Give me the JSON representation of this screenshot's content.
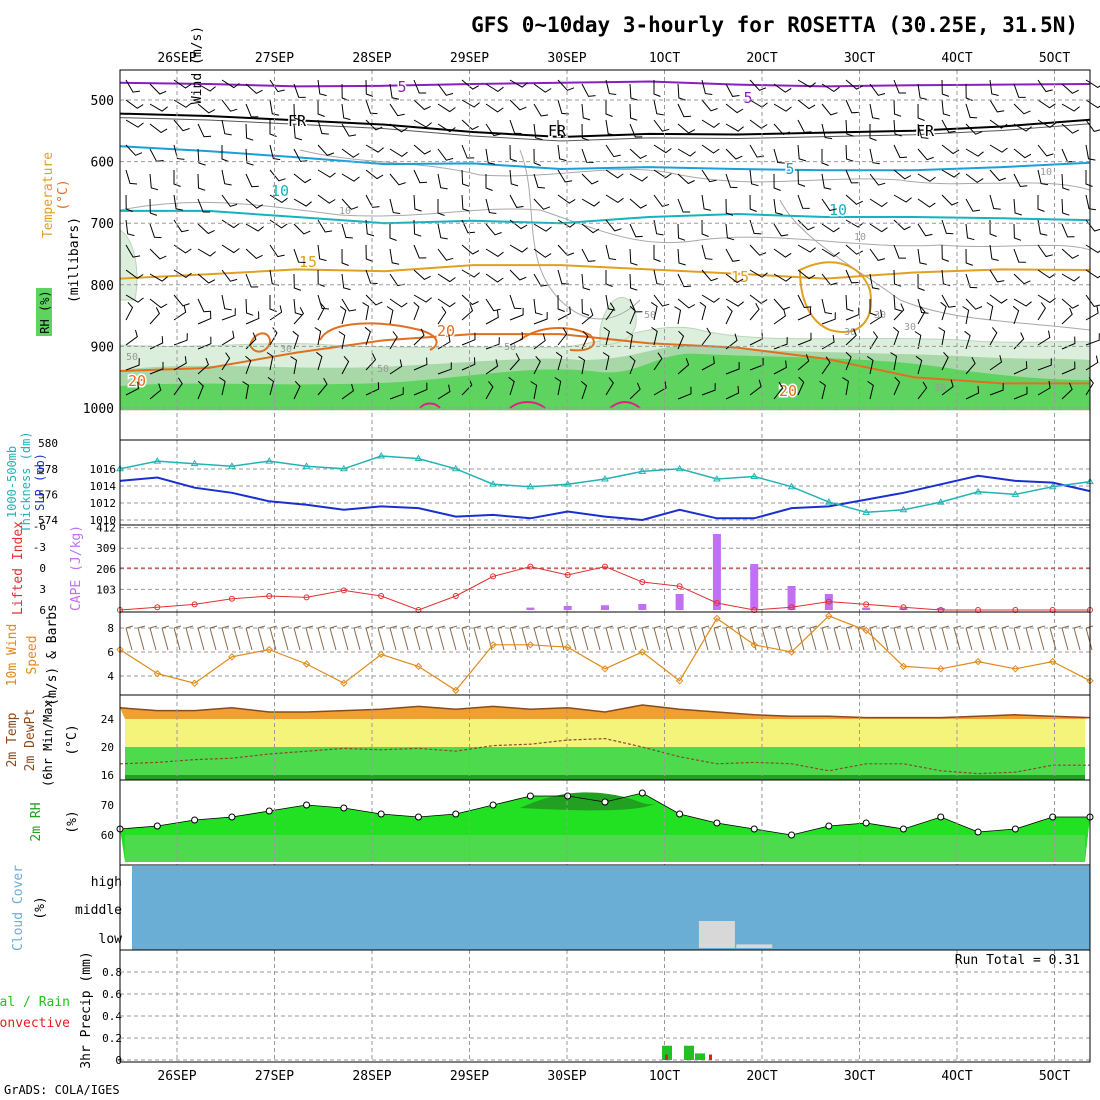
{
  "title": "GFS 0~10day 3-hourly for ROSETTA (30.25E, 31.5N)",
  "credit": "GrADS: COLA/IGES",
  "colors": {
    "purple": "#8a1fbf",
    "black": "#000000",
    "blue": "#1a9fd8",
    "cyan": "#14b3bf",
    "orange": "#e0a020",
    "darkorange": "#e07020",
    "rhgreen": "#5fd35f",
    "lightgreen": "#dcefdc",
    "slp": "#1a2fd0",
    "thick": "#22b3b3",
    "lifted": "#e03030",
    "cape": "#c070f0",
    "wind": "#e08a1a",
    "cloud": "#6aaed6",
    "rain": "#22c022",
    "conv": "#e02020"
  },
  "chart_data": [
    {
      "type": "contour",
      "panel": "upper-air",
      "title": "Temperature (°C) Wind (m/s) RH (%)",
      "ylabel": "(millibars)",
      "y_ticks": [
        500,
        600,
        700,
        800,
        900,
        1000
      ],
      "x_labels": [
        "26SEP",
        "27SEP",
        "28SEP",
        "29SEP",
        "30SEP",
        "1OCT",
        "2OCT",
        "3OCT",
        "4OCT",
        "5OCT"
      ],
      "contour_labels": [
        "5",
        "5",
        "FR",
        "FR",
        "FR",
        "5",
        "10",
        "10",
        "15",
        "15",
        "20",
        "20",
        "20"
      ],
      "rh_labels": [
        "50",
        "30",
        "50",
        "30",
        "30",
        "10",
        "10",
        "10",
        "30",
        "50",
        "50",
        "30"
      ],
      "isotherms": [
        {
          "name": "minus5",
          "label": "-5",
          "pressure": [
            472,
            474,
            478,
            477,
            474,
            472,
            470,
            475,
            478,
            476,
            475,
            474
          ]
        },
        {
          "name": "freezing",
          "label": "FR",
          "pressure": [
            522,
            526,
            533,
            540,
            552,
            560,
            555,
            556,
            553,
            550,
            543,
            532
          ]
        },
        {
          "name": "plus5",
          "label": "5",
          "pressure": [
            575,
            583,
            593,
            604,
            603,
            612,
            609,
            612,
            614,
            614,
            609,
            602
          ]
        },
        {
          "name": "plus10",
          "label": "10",
          "pressure": [
            680,
            680,
            690,
            700,
            696,
            700,
            690,
            685,
            690,
            690,
            692,
            695
          ]
        },
        {
          "name": "plus15",
          "label": "15",
          "pressure": [
            790,
            783,
            775,
            778,
            768,
            768,
            775,
            782,
            790,
            780,
            775,
            776
          ]
        },
        {
          "name": "plus20",
          "label": "20",
          "pressure": [
            940,
            935,
            910,
            890,
            880,
            880,
            895,
            902,
            920,
            950,
            960,
            960
          ]
        }
      ]
    },
    {
      "type": "line",
      "panel": "pressure",
      "ylabel": "1000-500mb Thickness (dm) SLP (mb)",
      "slp_ticks": [
        1010,
        1012,
        1014,
        1016
      ],
      "thickness_ticks": [
        574,
        576,
        578,
        580
      ],
      "series": [
        {
          "name": "SLP",
          "values": [
            1014.6,
            1015.0,
            1013.8,
            1013.2,
            1012.2,
            1011.8,
            1011.2,
            1011.6,
            1011.4,
            1010.4,
            1010.6,
            1010.2,
            1011.0,
            1010.4,
            1010.0,
            1011.2,
            1010.2,
            1010.2,
            1011.4,
            1011.6,
            1012.4,
            1013.2,
            1014.2,
            1015.2,
            1014.6,
            1014.4,
            1013.4
          ]
        },
        {
          "name": "Thickness",
          "values": [
            578.0,
            578.6,
            578.4,
            578.2,
            578.6,
            578.2,
            578.0,
            579.0,
            578.8,
            578.0,
            576.8,
            576.6,
            576.8,
            577.2,
            577.8,
            578.0,
            577.2,
            577.4,
            576.6,
            575.4,
            574.6,
            574.8,
            575.4,
            576.2,
            576.0,
            576.6,
            577.0
          ]
        }
      ]
    },
    {
      "type": "bar",
      "panel": "stability",
      "ylabel": "Lifted Index CAPE (J/kg)",
      "li_ticks": [
        -6,
        -3,
        0,
        3,
        6
      ],
      "cape_ticks": [
        103,
        206,
        309,
        412
      ],
      "lifted_index": [
        6,
        5.6,
        5.2,
        4.4,
        4.0,
        4.2,
        3.2,
        4.0,
        6,
        4.0,
        1.2,
        -0.2,
        1.0,
        -0.2,
        2.0,
        2.6,
        5.0,
        6,
        5.6,
        4.8,
        5.2,
        5.6,
        6,
        6,
        6,
        6,
        6
      ],
      "cape_bars": [
        0,
        0,
        0,
        0,
        0,
        0,
        0,
        0,
        0,
        0,
        0,
        12,
        20,
        24,
        30,
        80,
        380,
        230,
        120,
        80,
        12,
        10,
        10,
        0,
        0,
        0,
        0
      ]
    },
    {
      "type": "line",
      "panel": "wind",
      "ylabel": "10m Wind Speed (m/s) & Barbs",
      "y_ticks": [
        4,
        6,
        8
      ],
      "series": [
        {
          "name": "Wind Speed",
          "values": [
            6.2,
            4.2,
            3.4,
            5.6,
            6.2,
            5.0,
            3.4,
            5.8,
            4.8,
            2.8,
            6.6,
            6.6,
            6.4,
            4.6,
            6.0,
            3.6,
            8.8,
            6.6,
            6.0,
            9.0,
            7.8,
            4.8,
            4.6,
            5.2,
            4.6,
            5.2,
            3.6
          ]
        }
      ]
    },
    {
      "type": "area",
      "panel": "temperature",
      "ylabel": "2m Temp 2m DewPt (6hr Min/Max) (°C)",
      "y_ticks": [
        16,
        20,
        24
      ],
      "series": [
        {
          "name": "Temp Max",
          "values": [
            25.6,
            25.2,
            25.2,
            25.6,
            25.0,
            25.0,
            25.2,
            25.4,
            25.8,
            25.4,
            25.8,
            25.4,
            25.6,
            25.0,
            26.0,
            25.4,
            25.0,
            24.6,
            24.4,
            24.4,
            24.2,
            24.2,
            24.2,
            24.4,
            24.6,
            24.4,
            24.2
          ]
        },
        {
          "name": "DewPt",
          "values": [
            17.6,
            17.8,
            18.2,
            18.4,
            19.0,
            19.4,
            19.8,
            19.6,
            19.8,
            19.4,
            20.2,
            20.4,
            21.0,
            21.2,
            20.0,
            18.6,
            17.6,
            17.8,
            17.6,
            16.6,
            17.6,
            17.6,
            16.6,
            16.2,
            16.4,
            17.4,
            17.4
          ]
        }
      ]
    },
    {
      "type": "area",
      "panel": "humidity",
      "ylabel": "2m RH (%)",
      "y_ticks": [
        60,
        70
      ],
      "series": [
        {
          "name": "RH",
          "values": [
            62,
            63,
            65,
            66,
            68,
            70,
            69,
            67,
            66,
            67,
            70,
            73,
            73,
            71,
            74,
            67,
            64,
            62,
            60,
            63,
            64,
            62,
            66,
            61,
            62,
            66,
            66
          ]
        }
      ]
    },
    {
      "type": "area",
      "panel": "cloud",
      "ylabel": "Cloud Cover (%)",
      "levels": [
        "high",
        "middle",
        "low"
      ],
      "low_cover": [
        0,
        0,
        0,
        0,
        0,
        0,
        0,
        0,
        0,
        0,
        0,
        0,
        0,
        0,
        0,
        0,
        30,
        4,
        0,
        0,
        0,
        0,
        0,
        0,
        0,
        0,
        0
      ]
    },
    {
      "type": "bar",
      "panel": "precip",
      "ylabel": "3hr Precip (mm)",
      "series_labels": [
        "Total / Rain",
        "Convective"
      ],
      "y_ticks": [
        0,
        0.2,
        0.4,
        0.6,
        0.8
      ],
      "run_total_label": "Run Total = 0.31",
      "rain": [
        0.13,
        0.0,
        0.13,
        0.06,
        0.0
      ],
      "convective": [
        0.05,
        0.0,
        0.0,
        0.0,
        0.05
      ]
    }
  ]
}
